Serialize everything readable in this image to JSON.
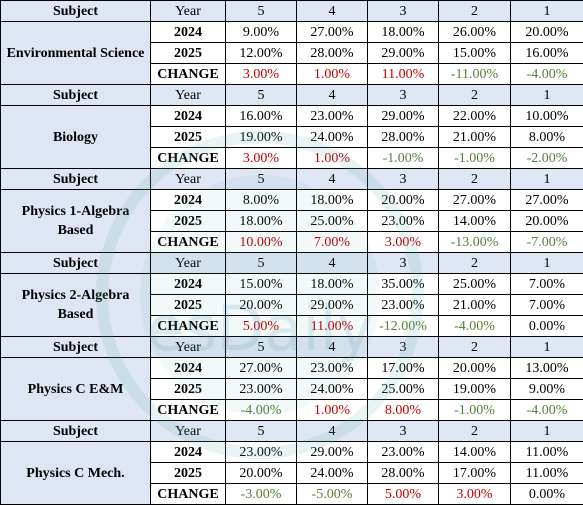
{
  "headers": {
    "subject": "Subject",
    "year": "Year",
    "scores": [
      "5",
      "4",
      "3",
      "2",
      "1"
    ]
  },
  "change_label": "CHANGE",
  "watermark_text": "esDaily",
  "colors": {
    "header_bg": "#dde6f2",
    "increase": "#c00000",
    "decrease": "#538135"
  },
  "subjects": [
    {
      "name": "Environmental Science",
      "rows": [
        {
          "year": "2024",
          "values": [
            "9.00%",
            "27.00%",
            "18.00%",
            "26.00%",
            "20.00%"
          ]
        },
        {
          "year": "2025",
          "values": [
            "12.00%",
            "28.00%",
            "29.00%",
            "15.00%",
            "16.00%"
          ]
        }
      ],
      "change": [
        "3.00%",
        "1.00%",
        "11.00%",
        "-11.00%",
        "-4.00%"
      ]
    },
    {
      "name": "Biology",
      "rows": [
        {
          "year": "2024",
          "values": [
            "16.00%",
            "23.00%",
            "29.00%",
            "22.00%",
            "10.00%"
          ]
        },
        {
          "year": "2025",
          "values": [
            "19.00%",
            "24.00%",
            "28.00%",
            "21.00%",
            "8.00%"
          ]
        }
      ],
      "change": [
        "3.00%",
        "1.00%",
        "-1.00%",
        "-1.00%",
        "-2.00%"
      ]
    },
    {
      "name": "Physics 1-Algebra Based",
      "rows": [
        {
          "year": "2024",
          "values": [
            "8.00%",
            "18.00%",
            "20.00%",
            "27.00%",
            "27.00%"
          ]
        },
        {
          "year": "2025",
          "values": [
            "18.00%",
            "25.00%",
            "23.00%",
            "14.00%",
            "20.00%"
          ]
        }
      ],
      "change": [
        "10.00%",
        "7.00%",
        "3.00%",
        "-13.00%",
        "-7.00%"
      ]
    },
    {
      "name": "Physics 2-Algebra Based",
      "rows": [
        {
          "year": "2024",
          "values": [
            "15.00%",
            "18.00%",
            "35.00%",
            "25.00%",
            "7.00%"
          ]
        },
        {
          "year": "2025",
          "values": [
            "20.00%",
            "29.00%",
            "23.00%",
            "21.00%",
            "7.00%"
          ]
        }
      ],
      "change": [
        "5.00%",
        "11.00%",
        "-12.00%",
        "-4.00%",
        "0.00%"
      ]
    },
    {
      "name": "Physics C E&M",
      "rows": [
        {
          "year": "2024",
          "values": [
            "27.00%",
            "23.00%",
            "17.00%",
            "20.00%",
            "13.00%"
          ]
        },
        {
          "year": "2025",
          "values": [
            "23.00%",
            "24.00%",
            "25.00%",
            "19.00%",
            "9.00%"
          ]
        }
      ],
      "change": [
        "-4.00%",
        "1.00%",
        "8.00%",
        "-1.00%",
        "-4.00%"
      ]
    },
    {
      "name": "Physics C Mech.",
      "rows": [
        {
          "year": "2024",
          "values": [
            "23.00%",
            "29.00%",
            "23.00%",
            "14.00%",
            "11.00%"
          ]
        },
        {
          "year": "2025",
          "values": [
            "20.00%",
            "24.00%",
            "28.00%",
            "17.00%",
            "11.00%"
          ]
        }
      ],
      "change": [
        "-3.00%",
        "-5.00%",
        "5.00%",
        "3.00%",
        "0.00%"
      ]
    }
  ]
}
